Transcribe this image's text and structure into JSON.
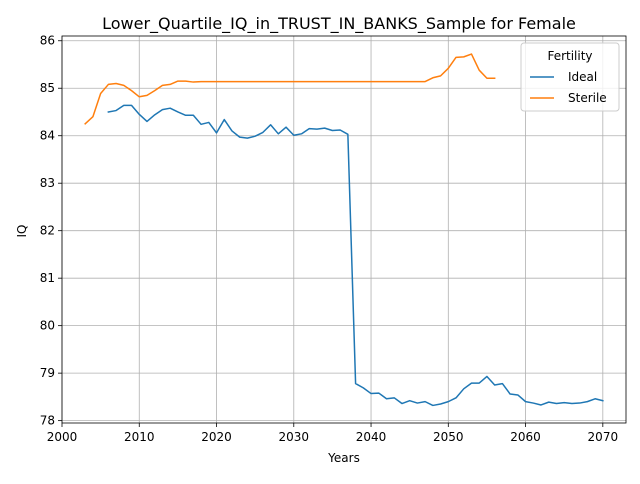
{
  "chart_data": {
    "type": "line",
    "title": "Lower_Quartile_IQ_in_TRUST_IN_BANKS_Sample for Female",
    "xlabel": "Years",
    "ylabel": "IQ",
    "xlim": [
      2000,
      2073
    ],
    "ylim": [
      77.95,
      86.1
    ],
    "xticks": [
      2000,
      2010,
      2020,
      2030,
      2040,
      2050,
      2060,
      2070
    ],
    "yticks": [
      78,
      79,
      80,
      81,
      82,
      83,
      84,
      85,
      86
    ],
    "grid": true,
    "legend": {
      "title": "Fertility",
      "position": "top-right"
    },
    "series": [
      {
        "name": "Ideal",
        "color": "#1f77b4",
        "x": [
          2006,
          2007,
          2008,
          2009,
          2010,
          2011,
          2012,
          2013,
          2014,
          2015,
          2016,
          2017,
          2018,
          2019,
          2020,
          2021,
          2022,
          2023,
          2024,
          2025,
          2026,
          2027,
          2028,
          2029,
          2030,
          2031,
          2032,
          2033,
          2034,
          2035,
          2036,
          2037,
          2038,
          2039,
          2040,
          2041,
          2042,
          2043,
          2044,
          2045,
          2046,
          2047,
          2048,
          2049,
          2050,
          2051,
          2052,
          2053,
          2054,
          2055,
          2056,
          2057,
          2058,
          2059,
          2060,
          2061,
          2062,
          2063,
          2064,
          2065,
          2066,
          2067,
          2068,
          2069,
          2070
        ],
        "values": [
          84.5,
          84.53,
          84.64,
          84.64,
          84.45,
          84.3,
          84.44,
          84.55,
          84.58,
          84.5,
          84.43,
          84.43,
          84.24,
          84.28,
          84.06,
          84.34,
          84.1,
          83.97,
          83.95,
          83.99,
          84.07,
          84.23,
          84.04,
          84.18,
          84.01,
          84.04,
          84.15,
          84.14,
          84.16,
          84.11,
          84.12,
          84.03,
          78.78,
          78.69,
          78.57,
          78.58,
          78.46,
          78.48,
          78.36,
          78.42,
          78.37,
          78.4,
          78.32,
          78.35,
          78.4,
          78.48,
          78.67,
          78.79,
          78.79,
          78.93,
          78.75,
          78.78,
          78.56,
          78.54,
          78.4,
          78.37,
          78.33,
          78.39,
          78.36,
          78.38,
          78.36,
          78.37,
          78.4,
          78.46,
          78.42
        ]
      },
      {
        "name": "Sterile",
        "color": "#ff7f0e",
        "x": [
          2003,
          2004,
          2005,
          2006,
          2007,
          2008,
          2009,
          2010,
          2011,
          2012,
          2013,
          2014,
          2015,
          2016,
          2017,
          2018,
          2019,
          2020,
          2021,
          2022,
          2023,
          2024,
          2025,
          2026,
          2027,
          2028,
          2029,
          2030,
          2031,
          2032,
          2033,
          2034,
          2035,
          2036,
          2037,
          2038,
          2039,
          2040,
          2041,
          2042,
          2043,
          2044,
          2045,
          2046,
          2047,
          2048,
          2049,
          2050,
          2051,
          2052,
          2053,
          2054,
          2055,
          2056
        ],
        "values": [
          84.25,
          84.4,
          84.89,
          85.08,
          85.1,
          85.06,
          84.95,
          84.82,
          84.85,
          84.95,
          85.06,
          85.08,
          85.15,
          85.15,
          85.13,
          85.14,
          85.14,
          85.14,
          85.14,
          85.14,
          85.14,
          85.14,
          85.14,
          85.14,
          85.14,
          85.14,
          85.14,
          85.14,
          85.14,
          85.14,
          85.14,
          85.14,
          85.14,
          85.14,
          85.14,
          85.14,
          85.14,
          85.14,
          85.14,
          85.14,
          85.14,
          85.14,
          85.14,
          85.14,
          85.14,
          85.22,
          85.26,
          85.42,
          85.65,
          85.66,
          85.72,
          85.38,
          85.21,
          85.21
        ]
      }
    ]
  }
}
